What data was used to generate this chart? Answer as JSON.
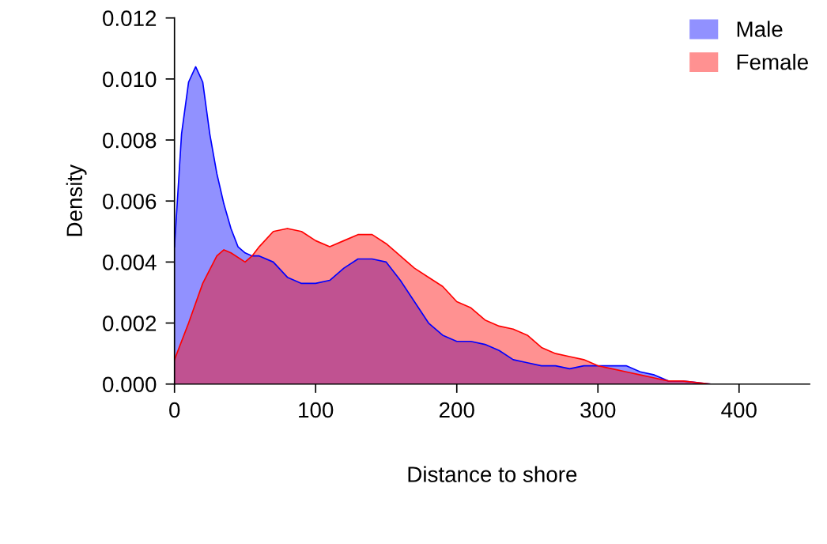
{
  "chart_data": {
    "type": "area",
    "xlabel": "Distance to shore",
    "ylabel": "Density",
    "xlim": [
      0,
      450
    ],
    "ylim": [
      0,
      0.012
    ],
    "xticks": [
      0,
      100,
      200,
      300,
      400
    ],
    "yticks": [
      {
        "value": 0,
        "label": "0.000"
      },
      {
        "value": 0.002,
        "label": "0.002"
      },
      {
        "value": 0.004,
        "label": "0.004"
      },
      {
        "value": 0.006,
        "label": "0.006"
      },
      {
        "value": 0.008,
        "label": "0.008"
      },
      {
        "value": 0.01,
        "label": "0.010"
      },
      {
        "value": 0.012,
        "label": "0.012"
      }
    ],
    "grid": false,
    "legend": "top right",
    "series": [
      {
        "name": "Male",
        "color": "#0000ff",
        "x": [
          0,
          5,
          10,
          15,
          20,
          25,
          30,
          35,
          40,
          45,
          50,
          55,
          60,
          70,
          80,
          90,
          100,
          110,
          120,
          130,
          140,
          150,
          160,
          170,
          180,
          190,
          200,
          210,
          220,
          230,
          240,
          250,
          260,
          270,
          280,
          290,
          300,
          310,
          320,
          330,
          340,
          350,
          360,
          380,
          400
        ],
        "values": [
          0.0045,
          0.0082,
          0.0099,
          0.0104,
          0.0099,
          0.0082,
          0.0069,
          0.0059,
          0.0051,
          0.0045,
          0.0043,
          0.0042,
          0.0042,
          0.004,
          0.0035,
          0.0033,
          0.0033,
          0.0034,
          0.0038,
          0.0041,
          0.0041,
          0.004,
          0.0034,
          0.0027,
          0.002,
          0.0016,
          0.0014,
          0.0014,
          0.0013,
          0.0011,
          0.0008,
          0.0007,
          0.0006,
          0.0006,
          0.0005,
          0.0006,
          0.0006,
          0.0006,
          0.0006,
          0.0004,
          0.0003,
          0.0001,
          0.0001,
          0.0,
          0.0
        ]
      },
      {
        "name": "Female",
        "color": "#ff0000",
        "x": [
          0,
          10,
          20,
          30,
          35,
          40,
          50,
          55,
          60,
          70,
          80,
          90,
          100,
          110,
          120,
          130,
          140,
          150,
          160,
          170,
          180,
          190,
          200,
          210,
          220,
          230,
          240,
          250,
          260,
          270,
          280,
          290,
          300,
          310,
          320,
          330,
          340,
          350,
          360,
          380,
          400
        ],
        "values": [
          0.0008,
          0.002,
          0.0033,
          0.0042,
          0.0044,
          0.0043,
          0.004,
          0.0042,
          0.0045,
          0.005,
          0.0051,
          0.005,
          0.0047,
          0.0045,
          0.0047,
          0.0049,
          0.0049,
          0.0046,
          0.0042,
          0.0038,
          0.0035,
          0.0032,
          0.0027,
          0.0025,
          0.0021,
          0.0019,
          0.0018,
          0.0016,
          0.0012,
          0.001,
          0.0009,
          0.0008,
          0.0006,
          0.0005,
          0.0004,
          0.0003,
          0.0002,
          0.0001,
          0.0001,
          0.0,
          0.0
        ]
      }
    ]
  }
}
